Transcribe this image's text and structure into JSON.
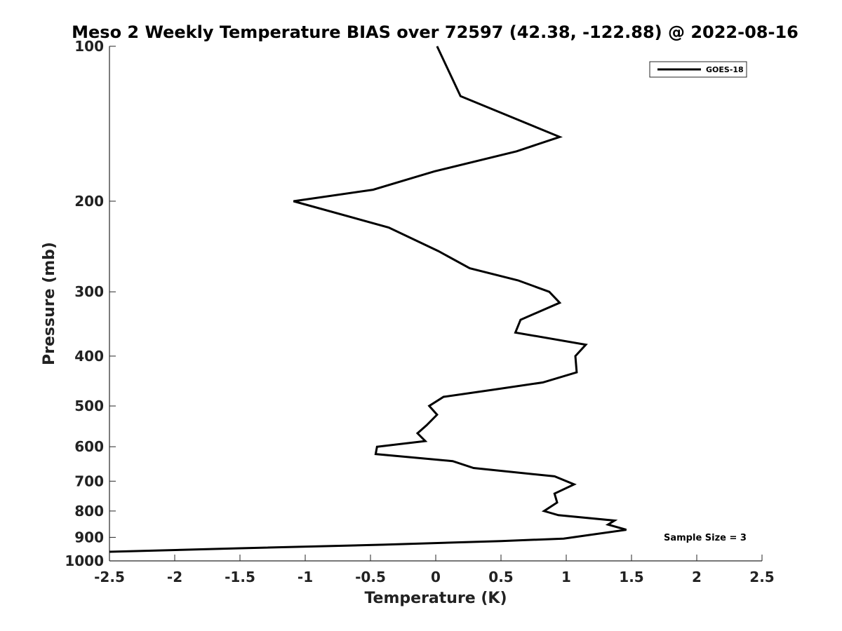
{
  "chart_data": {
    "type": "line",
    "title": "Meso 2 Weekly Temperature BIAS over 72597 (42.38, -122.88) @ 2022-08-16",
    "xlabel": "Temperature (K)",
    "ylabel": "Pressure (mb)",
    "xlim": [
      -2.5,
      2.5
    ],
    "ylim": [
      100,
      1000
    ],
    "y_scale": "log",
    "y_reversed": true,
    "grid": false,
    "legend_position": "top-right",
    "x_ticks": [
      -2.5,
      -2,
      -1.5,
      -1,
      -0.5,
      0,
      0.5,
      1,
      1.5,
      2,
      2.5
    ],
    "x_tick_labels": [
      "-2.5",
      "-2",
      "-1.5",
      "-1",
      "-0.5",
      "0",
      "0.5",
      "1",
      "1.5",
      "2",
      "2.5"
    ],
    "y_ticks": [
      100,
      200,
      300,
      400,
      500,
      600,
      700,
      800,
      900,
      1000
    ],
    "y_tick_labels": [
      "100",
      "200",
      "300",
      "400",
      "500",
      "600",
      "700",
      "800",
      "900",
      "1000"
    ],
    "series": [
      {
        "name": "GOES-18",
        "color": "#000000",
        "points": [
          {
            "x": 0.01,
            "y": 100
          },
          {
            "x": 0.19,
            "y": 125
          },
          {
            "x": 0.95,
            "y": 150
          },
          {
            "x": 0.62,
            "y": 160
          },
          {
            "x": -0.01,
            "y": 175
          },
          {
            "x": -0.48,
            "y": 190
          },
          {
            "x": -1.09,
            "y": 200
          },
          {
            "x": -0.36,
            "y": 225
          },
          {
            "x": 0.02,
            "y": 250
          },
          {
            "x": 0.26,
            "y": 270
          },
          {
            "x": 0.63,
            "y": 285
          },
          {
            "x": 0.87,
            "y": 300
          },
          {
            "x": 0.95,
            "y": 315
          },
          {
            "x": 0.65,
            "y": 340
          },
          {
            "x": 0.61,
            "y": 360
          },
          {
            "x": 1.15,
            "y": 380
          },
          {
            "x": 1.07,
            "y": 400
          },
          {
            "x": 1.08,
            "y": 430
          },
          {
            "x": 0.82,
            "y": 450
          },
          {
            "x": 0.44,
            "y": 465
          },
          {
            "x": 0.06,
            "y": 480
          },
          {
            "x": -0.05,
            "y": 500
          },
          {
            "x": 0.01,
            "y": 520
          },
          {
            "x": -0.07,
            "y": 545
          },
          {
            "x": -0.14,
            "y": 565
          },
          {
            "x": -0.08,
            "y": 585
          },
          {
            "x": -0.45,
            "y": 600
          },
          {
            "x": -0.46,
            "y": 620
          },
          {
            "x": 0.13,
            "y": 640
          },
          {
            "x": 0.29,
            "y": 660
          },
          {
            "x": 0.91,
            "y": 685
          },
          {
            "x": 1.06,
            "y": 710
          },
          {
            "x": 0.91,
            "y": 740
          },
          {
            "x": 0.93,
            "y": 770
          },
          {
            "x": 0.83,
            "y": 800
          },
          {
            "x": 0.94,
            "y": 815
          },
          {
            "x": 1.37,
            "y": 835
          },
          {
            "x": 1.32,
            "y": 850
          },
          {
            "x": 1.46,
            "y": 870
          },
          {
            "x": 0.98,
            "y": 905
          },
          {
            "x": 0.5,
            "y": 915
          },
          {
            "x": -0.4,
            "y": 930
          },
          {
            "x": -1.5,
            "y": 945
          },
          {
            "x": -2.5,
            "y": 960
          }
        ]
      }
    ],
    "annotation": "Sample Size = 3"
  }
}
